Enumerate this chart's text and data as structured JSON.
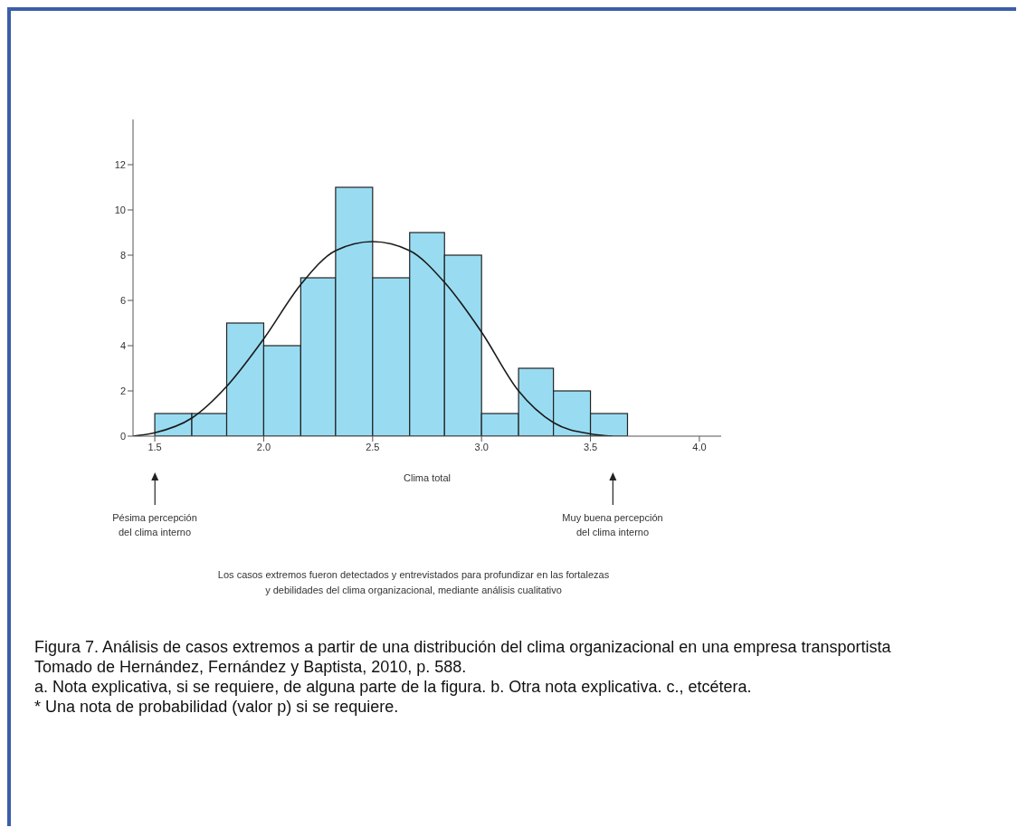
{
  "chart_data": {
    "type": "histogram",
    "xlabel": "Clima total",
    "bins": [
      1.5,
      1.67,
      1.83,
      2.0,
      2.17,
      2.33,
      2.5,
      2.67,
      2.83,
      3.0,
      3.17,
      3.33,
      3.5,
      3.67
    ],
    "values": [
      1,
      1,
      5,
      4,
      7,
      11,
      7,
      9,
      8,
      1,
      3,
      2,
      1
    ],
    "color": "#99dcf2",
    "series": [
      {
        "type": "line",
        "color": "#1a1a1a",
        "x": [
          1.4,
          1.5,
          1.67,
          1.83,
          2.0,
          2.17,
          2.33,
          2.5,
          2.67,
          2.83,
          3.0,
          3.17,
          3.33,
          3.5,
          3.6
        ],
        "values": [
          0,
          0.15,
          0.8,
          2.2,
          4.3,
          6.7,
          8.2,
          8.6,
          8.2,
          6.8,
          4.6,
          2.0,
          0.6,
          0.1,
          0
        ]
      }
    ],
    "xlim": [
      1.4,
      4.1
    ],
    "xticks": [
      {
        "value": 1.5,
        "label": "1.5"
      },
      {
        "value": 2.0,
        "label": "2.0"
      },
      {
        "value": 2.5,
        "label": "2.5"
      },
      {
        "value": 3.0,
        "label": "3.0"
      },
      {
        "value": 3.5,
        "label": "3.5"
      },
      {
        "value": 4.0,
        "label": "4.0"
      }
    ],
    "ylim": [
      0,
      14
    ],
    "yticks": [
      0,
      2,
      4,
      6,
      8,
      10,
      12
    ],
    "annotations": [
      "Pésima percepción\ndel clima interno",
      "Muy buena percepción\ndel clima interno",
      "Los casos extremos fueron detectados y entrevistados para profundizar en las fortalezas\ny debilidades del clima organizacional, mediante análisis cualitativo",
      "Figura 7. Análisis de casos extremos a partir de una distribución del clima organizacional en una empresa transportista",
      "Tomado de Hernández, Fernández y Baptista, 2010, p. 588.",
      "a. Nota explicativa, si se requiere, de alguna parte de la figura. b. Otra nota explicativa. c., etcétera.",
      "* Una nota de probabilidad (valor p) si se requiere."
    ]
  }
}
